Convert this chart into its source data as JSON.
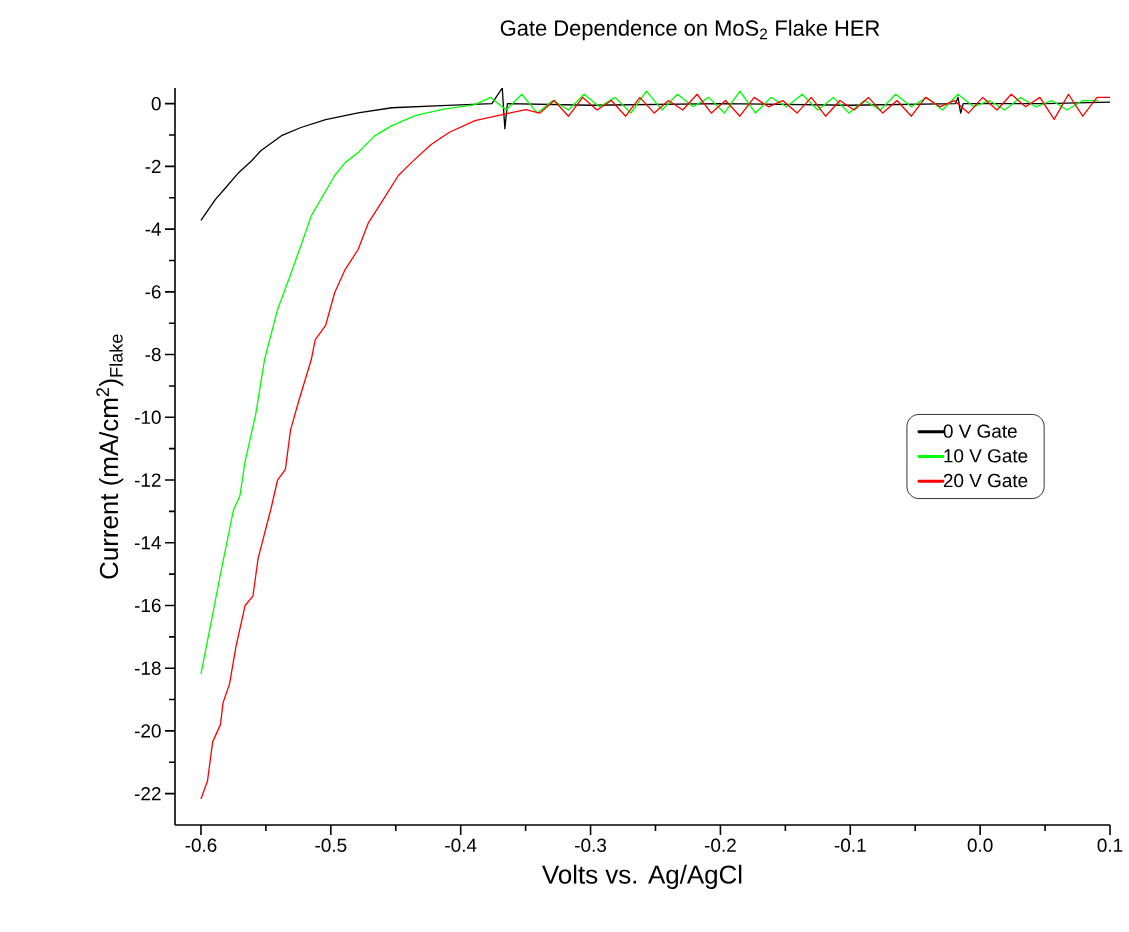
{
  "chart_data": {
    "type": "line",
    "title": "Gate Dependence on MoS$_{2}$ Flake HER",
    "xlabel": "Volts vs. Ag/AgCl",
    "ylabel": "Current (mA/cm$^{2}$)$_{Flake}$",
    "xlim": [
      -0.62,
      0.1
    ],
    "ylim": [
      -23,
      0.5
    ],
    "xticks": [
      -0.6,
      -0.5,
      -0.4,
      -0.3,
      -0.2,
      -0.1,
      {
        "value": 0,
        "label": "0.0"
      },
      0.1
    ],
    "yticks": [
      0,
      -2,
      -4,
      -6,
      -8,
      -10,
      -12,
      -14,
      -16,
      -18,
      -20,
      -22
    ],
    "grid": false,
    "legend": "right",
    "line_style": "solid",
    "series": [
      {
        "name": "0 V Gate",
        "color": "#000000",
        "x": [
          -0.6,
          -0.589,
          -0.581,
          -0.571,
          -0.561,
          -0.554,
          -0.538,
          -0.523,
          -0.504,
          -0.479,
          -0.453,
          -0.415,
          -0.376,
          -0.368,
          -0.366,
          -0.364,
          -0.3,
          -0.2,
          -0.1,
          -0.019,
          -0.017,
          -0.015,
          -0.013,
          0.05,
          0.1
        ],
        "values": [
          -3.72,
          -3.06,
          -2.68,
          -2.2,
          -1.82,
          -1.5,
          -1.02,
          -0.76,
          -0.51,
          -0.29,
          -0.13,
          -0.06,
          0,
          0.5,
          -0.8,
          0,
          -0.05,
          0,
          -0.05,
          0,
          0.2,
          -0.3,
          0,
          0,
          0.05
        ]
      },
      {
        "name": "10 V Gate",
        "color": "#00ff00",
        "x": [
          -0.6,
          -0.592,
          -0.585,
          -0.575,
          -0.57,
          -0.566,
          -0.558,
          -0.551,
          -0.541,
          -0.531,
          -0.523,
          -0.515,
          -0.507,
          -0.497,
          -0.489,
          -0.479,
          -0.466,
          -0.453,
          -0.435,
          -0.415,
          -0.389,
          -0.377,
          -0.365,
          -0.353,
          -0.341,
          -0.329,
          -0.317,
          -0.305,
          -0.293,
          -0.281,
          -0.269,
          -0.257,
          -0.245,
          -0.233,
          -0.221,
          -0.209,
          -0.197,
          -0.185,
          -0.173,
          -0.161,
          -0.149,
          -0.137,
          -0.125,
          -0.113,
          -0.101,
          -0.089,
          -0.077,
          -0.065,
          -0.053,
          -0.041,
          -0.029,
          -0.017,
          -0.005,
          0.007,
          0.019,
          0.031,
          0.043,
          0.055,
          0.067,
          0.079,
          0.091
        ],
        "values": [
          -18.18,
          -16.5,
          -15.0,
          -12.96,
          -12.5,
          -11.4,
          -9.94,
          -8.15,
          -6.56,
          -5.45,
          -4.52,
          -3.57,
          -3.0,
          -2.29,
          -1.88,
          -1.56,
          -1.02,
          -0.7,
          -0.38,
          -0.19,
          -0.03,
          0.2,
          -0.2,
          0.3,
          -0.3,
          0.1,
          -0.2,
          0.3,
          -0.1,
          0.2,
          -0.3,
          0.4,
          -0.2,
          0.3,
          -0.1,
          0.2,
          -0.3,
          0.4,
          -0.3,
          0.2,
          -0.1,
          0.3,
          -0.2,
          0.2,
          -0.3,
          0.1,
          -0.2,
          0.3,
          -0.1,
          0.2,
          -0.2,
          0.3,
          -0.1,
          0.1,
          -0.2,
          0.2,
          -0.1,
          0.1,
          -0.2,
          0.1,
          0.1
        ]
      },
      {
        "name": "20 V Gate",
        "color": "#ff0000",
        "x": [
          -0.6,
          -0.595,
          -0.591,
          -0.585,
          -0.583,
          -0.578,
          -0.573,
          -0.566,
          -0.56,
          -0.556,
          -0.551,
          -0.546,
          -0.541,
          -0.535,
          -0.531,
          -0.525,
          -0.515,
          -0.512,
          -0.504,
          -0.497,
          -0.489,
          -0.479,
          -0.471,
          -0.461,
          -0.448,
          -0.438,
          -0.423,
          -0.409,
          -0.389,
          -0.368,
          -0.35,
          -0.339,
          -0.328,
          -0.317,
          -0.306,
          -0.295,
          -0.284,
          -0.273,
          -0.262,
          -0.251,
          -0.24,
          -0.229,
          -0.218,
          -0.207,
          -0.196,
          -0.185,
          -0.174,
          -0.163,
          -0.152,
          -0.141,
          -0.13,
          -0.119,
          -0.108,
          -0.097,
          -0.086,
          -0.075,
          -0.064,
          -0.053,
          -0.042,
          -0.031,
          -0.02,
          -0.009,
          0.002,
          0.013,
          0.024,
          0.035,
          0.046,
          0.057,
          0.068,
          0.079,
          0.09,
          0.1
        ],
        "values": [
          -22.17,
          -21.6,
          -20.35,
          -19.8,
          -19.1,
          -18.5,
          -17.3,
          -16.0,
          -15.7,
          -14.5,
          -13.7,
          -12.9,
          -12.0,
          -11.66,
          -10.4,
          -9.52,
          -8.15,
          -7.52,
          -7.07,
          -6.02,
          -5.29,
          -4.65,
          -3.79,
          -3.15,
          -2.29,
          -1.88,
          -1.31,
          -0.92,
          -0.54,
          -0.35,
          -0.19,
          -0.3,
          0.1,
          -0.4,
          0.2,
          -0.2,
          0.1,
          -0.4,
          0.2,
          -0.3,
          0.1,
          -0.2,
          0.3,
          -0.3,
          0.1,
          -0.4,
          0.2,
          -0.1,
          0.1,
          -0.3,
          0.2,
          -0.4,
          0.1,
          -0.2,
          0.2,
          -0.3,
          0.1,
          -0.4,
          0.2,
          -0.1,
          0.1,
          -0.3,
          0.2,
          -0.2,
          0.3,
          -0.1,
          0.2,
          -0.5,
          0.3,
          -0.4,
          0.2,
          0.2
        ]
      }
    ]
  }
}
